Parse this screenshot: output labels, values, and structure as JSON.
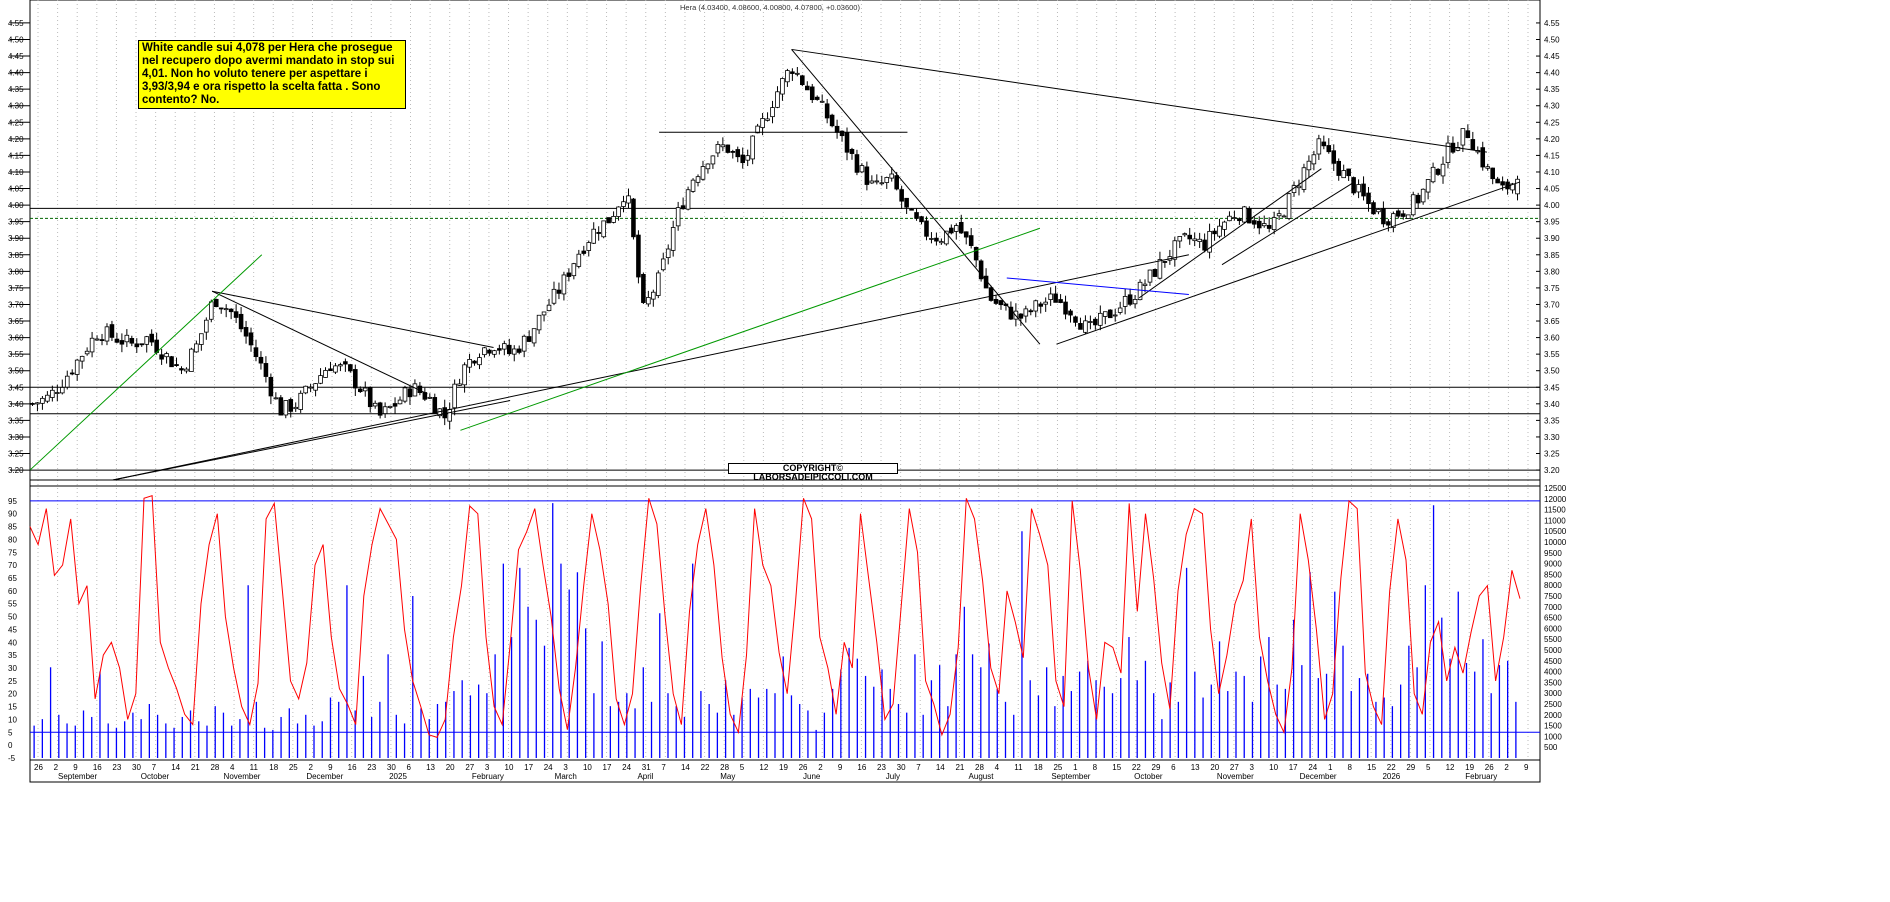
{
  "header": {
    "ticker_line": "Hera (4.03400, 4.08600, 4.00800, 4.07800, +0.03600)"
  },
  "annotation": {
    "text": "White candle sui 4,078 per Hera che prosegue nel recupero dopo avermi mandato in stop sui 4,01. Non ho voluto tenere per aspettare i 3,93/3,94 e ora rispetto la scelta fatta . Sono contento? No."
  },
  "copyright": {
    "text": "COPYRIGHT© LABORSADEIPICCOLI.COM"
  },
  "colors": {
    "candle_up": "#ffffff",
    "candle_down": "#000000",
    "trendline": "#000000",
    "green_trendline": "#009900",
    "blue_trendline": "#0000ff",
    "oscillator": "#ff0000",
    "volume": "#0000ff",
    "osc_levels": "#0000ff"
  },
  "chart_data": [
    {
      "type": "candlestick",
      "title": "Hera",
      "y_axis_side": "right",
      "ylim": [
        3.17,
        4.58
      ],
      "y_ticks": [
        "4.55",
        "4.50",
        "4.45",
        "4.40",
        "4.35",
        "4.30",
        "4.25",
        "4.20",
        "4.15",
        "4.10",
        "4.05",
        "4.00",
        "3.95",
        "3.90",
        "3.85",
        "3.80",
        "3.75",
        "3.70",
        "3.65",
        "3.60",
        "3.55",
        "3.50",
        "3.45",
        "3.40",
        "3.35",
        "3.30",
        "3.25",
        "3.20"
      ],
      "x_day_ticks": [
        "26",
        "2",
        "9",
        "16",
        "23",
        "30",
        "7",
        "14",
        "21",
        "28",
        "4",
        "11",
        "18",
        "25",
        "2",
        "9",
        "16",
        "23",
        "30",
        "6",
        "13",
        "20",
        "27",
        "3",
        "10",
        "17",
        "24",
        "3",
        "10",
        "17",
        "24",
        "31",
        "7",
        "14",
        "22",
        "28",
        "5",
        "12",
        "19",
        "26",
        "2",
        "9",
        "16",
        "23",
        "30",
        "7",
        "14",
        "21",
        "28",
        "4",
        "11",
        "18",
        "25",
        "1",
        "8",
        "15",
        "22",
        "29",
        "6",
        "13",
        "20",
        "27",
        "3",
        "10",
        "17",
        "24",
        "1",
        "8",
        "15",
        "22",
        "29",
        "5",
        "12",
        "19",
        "26",
        "2",
        "9"
      ],
      "x_month_labels": [
        "September",
        "October",
        "November",
        "December",
        "2025",
        "February",
        "March",
        "April",
        "May",
        "June",
        "July",
        "August",
        "September",
        "October",
        "November",
        "December",
        "2026",
        "February"
      ],
      "price_path": [
        [
          0,
          3.4
        ],
        [
          2,
          3.42
        ],
        [
          4,
          3.48
        ],
        [
          6,
          3.55
        ],
        [
          8,
          3.62
        ],
        [
          10,
          3.6
        ],
        [
          12,
          3.58
        ],
        [
          14,
          3.6
        ],
        [
          16,
          3.55
        ],
        [
          18,
          3.5
        ],
        [
          20,
          3.58
        ],
        [
          22,
          3.72
        ],
        [
          24,
          3.68
        ],
        [
          26,
          3.6
        ],
        [
          28,
          3.5
        ],
        [
          30,
          3.38
        ],
        [
          32,
          3.4
        ],
        [
          34,
          3.46
        ],
        [
          36,
          3.52
        ],
        [
          38,
          3.5
        ],
        [
          40,
          3.44
        ],
        [
          42,
          3.36
        ],
        [
          44,
          3.4
        ],
        [
          46,
          3.45
        ],
        [
          48,
          3.42
        ],
        [
          50,
          3.36
        ],
        [
          52,
          3.5
        ],
        [
          54,
          3.56
        ],
        [
          56,
          3.58
        ],
        [
          58,
          3.55
        ],
        [
          60,
          3.6
        ],
        [
          62,
          3.68
        ],
        [
          64,
          3.75
        ],
        [
          66,
          3.85
        ],
        [
          68,
          3.92
        ],
        [
          70,
          3.96
        ],
        [
          72,
          4.05
        ],
        [
          74,
          3.68
        ],
        [
          76,
          3.78
        ],
        [
          78,
          3.96
        ],
        [
          80,
          4.08
        ],
        [
          82,
          4.15
        ],
        [
          84,
          4.18
        ],
        [
          86,
          4.12
        ],
        [
          88,
          4.22
        ],
        [
          90,
          4.33
        ],
        [
          92,
          4.42
        ],
        [
          94,
          4.35
        ],
        [
          96,
          4.28
        ],
        [
          98,
          4.2
        ],
        [
          100,
          4.12
        ],
        [
          102,
          4.05
        ],
        [
          104,
          4.08
        ],
        [
          106,
          3.98
        ],
        [
          108,
          3.92
        ],
        [
          110,
          3.9
        ],
        [
          112,
          3.94
        ],
        [
          114,
          3.86
        ],
        [
          116,
          3.72
        ],
        [
          118,
          3.68
        ],
        [
          120,
          3.66
        ],
        [
          122,
          3.7
        ],
        [
          124,
          3.72
        ],
        [
          126,
          3.68
        ],
        [
          128,
          3.62
        ],
        [
          130,
          3.66
        ],
        [
          132,
          3.7
        ],
        [
          134,
          3.74
        ],
        [
          136,
          3.8
        ],
        [
          138,
          3.86
        ],
        [
          140,
          3.9
        ],
        [
          142,
          3.88
        ],
        [
          144,
          3.94
        ],
        [
          146,
          3.98
        ],
        [
          148,
          3.96
        ],
        [
          150,
          3.92
        ],
        [
          152,
          4.0
        ],
        [
          154,
          4.1
        ],
        [
          156,
          4.18
        ],
        [
          158,
          4.12
        ],
        [
          160,
          4.06
        ],
        [
          162,
          4.0
        ],
        [
          164,
          3.96
        ],
        [
          166,
          3.98
        ],
        [
          168,
          4.02
        ],
        [
          170,
          4.1
        ],
        [
          172,
          4.18
        ],
        [
          174,
          4.22
        ],
        [
          176,
          4.12
        ],
        [
          178,
          4.04
        ],
        [
          180,
          4.08
        ]
      ],
      "last_candle": {
        "open": 4.034,
        "high": 4.086,
        "low": 4.008,
        "close": 4.078,
        "change": 0.036
      },
      "horizontal_levels": [
        3.99,
        3.96,
        3.45,
        3.37,
        3.2,
        3.17
      ],
      "trendlines": [
        {
          "color": "black",
          "from": [
            92,
            4.47
          ],
          "to": [
            176,
            4.16
          ]
        },
        {
          "color": "black",
          "from": [
            92,
            4.47
          ],
          "to": [
            122,
            3.58
          ]
        },
        {
          "color": "black",
          "from": [
            76,
            4.22
          ],
          "to": [
            106,
            4.22
          ]
        },
        {
          "color": "black",
          "from": [
            22,
            3.74
          ],
          "to": [
            56,
            3.57
          ]
        },
        {
          "color": "black",
          "from": [
            22,
            3.74
          ],
          "to": [
            48,
            3.43
          ]
        },
        {
          "color": "black",
          "from": [
            10,
            3.17
          ],
          "to": [
            58,
            3.41
          ]
        },
        {
          "color": "black",
          "from": [
            10,
            3.17
          ],
          "to": [
            140,
            3.85
          ]
        },
        {
          "color": "black",
          "from": [
            124,
            3.58
          ],
          "to": [
            180,
            4.07
          ]
        },
        {
          "color": "black",
          "from": [
            134,
            3.72
          ],
          "to": [
            156,
            4.11
          ]
        },
        {
          "color": "black",
          "from": [
            144,
            3.82
          ],
          "to": [
            160,
            4.07
          ]
        },
        {
          "color": "green",
          "from": [
            0,
            3.2
          ],
          "to": [
            28,
            3.85
          ]
        },
        {
          "color": "green",
          "from": [
            52,
            3.32
          ],
          "to": [
            122,
            3.93
          ]
        },
        {
          "color": "blue",
          "from": [
            118,
            3.78
          ],
          "to": [
            140,
            3.73
          ]
        }
      ]
    },
    {
      "type": "line",
      "title": "",
      "ylim": [
        -5,
        100
      ],
      "y_ticks": [
        "95",
        "90",
        "85",
        "80",
        "75",
        "70",
        "65",
        "60",
        "55",
        "50",
        "45",
        "40",
        "35",
        "30",
        "25",
        "20",
        "15",
        "10",
        "5",
        "0",
        "-5"
      ],
      "levels": [
        95,
        5
      ],
      "series": [
        {
          "name": "",
          "values": [
            85,
            78,
            92,
            66,
            70,
            88,
            55,
            62,
            18,
            35,
            40,
            30,
            10,
            20,
            96,
            97,
            40,
            30,
            22,
            12,
            8,
            55,
            78,
            90,
            50,
            30,
            15,
            8,
            24,
            88,
            94,
            60,
            25,
            18,
            32,
            70,
            78,
            42,
            22,
            16,
            8,
            58,
            78,
            92,
            86,
            80,
            45,
            25,
            15,
            4,
            3,
            10,
            42,
            62,
            93,
            90,
            42,
            15,
            8,
            40,
            76,
            83,
            92,
            70,
            50,
            22,
            6,
            30,
            62,
            90,
            76,
            55,
            18,
            8,
            20,
            62,
            96,
            86,
            50,
            20,
            8,
            52,
            78,
            92,
            70,
            34,
            12,
            5,
            35,
            92,
            70,
            62,
            36,
            20,
            55,
            96,
            88,
            42,
            30,
            12,
            40,
            30,
            90,
            65,
            40,
            10,
            16,
            54,
            92,
            75,
            25,
            16,
            4,
            12,
            38,
            96,
            88,
            64,
            30,
            20,
            60,
            48,
            34,
            92,
            82,
            70,
            25,
            15,
            95,
            68,
            30,
            10,
            40,
            38,
            28,
            94,
            52,
            90,
            65,
            32,
            14,
            60,
            82,
            92,
            90,
            45,
            20,
            35,
            55,
            64,
            88,
            42,
            25,
            12,
            5,
            30,
            90,
            72,
            45,
            10,
            20,
            65,
            95,
            92,
            28,
            15,
            8,
            60,
            88,
            72,
            20,
            12,
            40,
            48,
            25,
            38,
            28,
            44,
            58,
            62,
            25,
            42,
            68,
            57
          ]
        }
      ]
    },
    {
      "type": "bar",
      "title": "",
      "ylim": [
        0,
        12500
      ],
      "y_ticks": [
        "12500",
        "12000",
        "11500",
        "11000",
        "10500",
        "10000",
        "9500",
        "9000",
        "8500",
        "8000",
        "7500",
        "7000",
        "6500",
        "6000",
        "5500",
        "5000",
        "4500",
        "4000",
        "3500",
        "3000",
        "2500",
        "2000",
        "1500",
        "1000",
        "500"
      ],
      "series": [
        {
          "name": "",
          "values": [
            1500,
            1800,
            4200,
            2000,
            1600,
            1500,
            2200,
            1900,
            4000,
            1600,
            1400,
            1700,
            2100,
            1800,
            2500,
            2000,
            1600,
            1400,
            1900,
            2200,
            1700,
            1500,
            2400,
            2100,
            1500,
            1800,
            8000,
            2600,
            1400,
            1300,
            1900,
            2300,
            1600,
            2000,
            1500,
            1700,
            2800,
            2600,
            8000,
            2200,
            3800,
            1900,
            2600,
            4800,
            2000,
            1600,
            7500,
            2300,
            1800,
            2500,
            2600,
            3100,
            3600,
            2900,
            3400,
            3000,
            4800,
            9000,
            5600,
            8800,
            7000,
            6400,
            5200,
            11800,
            9000,
            7800,
            8600,
            6000,
            3000,
            5400,
            2400,
            2600,
            3000,
            2300,
            4200,
            2600,
            6700,
            3000,
            2400,
            1900,
            9000,
            3100,
            2500,
            2100,
            3600,
            2000,
            2800,
            3200,
            2800,
            3200,
            3000,
            4700,
            2900,
            2500,
            2200,
            1300,
            2100,
            3200,
            4100,
            5100,
            4600,
            3800,
            3300,
            4100,
            3200,
            2500,
            2100,
            4800,
            2000,
            3600,
            4300,
            2400,
            4800,
            7000,
            4800,
            4200,
            5300,
            3200,
            2600,
            2000,
            10500,
            3600,
            2900,
            4200,
            2400,
            3800,
            3100,
            4000,
            4500,
            3600,
            3300,
            3000,
            3700,
            5600,
            3600,
            4500,
            3000,
            1800,
            3500,
            2600,
            8800,
            4000,
            2800,
            3400,
            5400,
            3100,
            4000,
            3800,
            2600,
            4700,
            5600,
            3400,
            3200,
            6400,
            4300,
            8600,
            3700,
            3900,
            7700,
            5200,
            3100,
            3700,
            3900,
            2600,
            2800,
            2400,
            3400,
            5200,
            4200,
            8000,
            11700,
            6500,
            4600,
            7700,
            4400,
            4000,
            5500,
            3000,
            4300,
            4500,
            2600
          ]
        }
      ]
    }
  ]
}
